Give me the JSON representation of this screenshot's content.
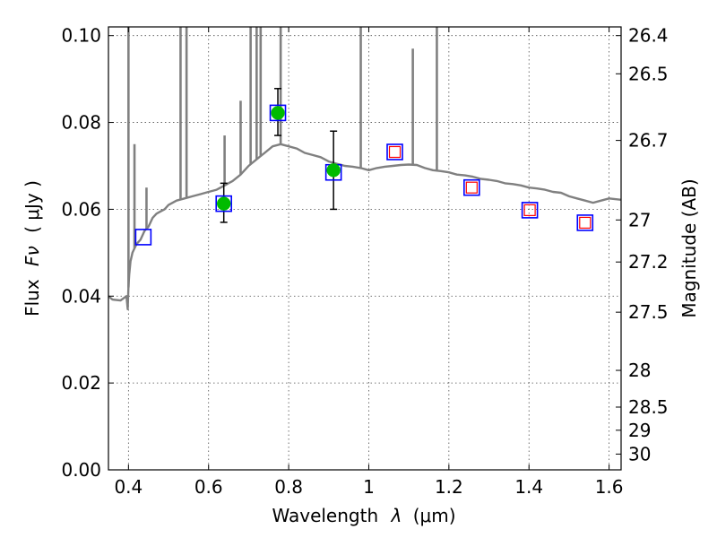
{
  "chart_data": {
    "type": "scatter",
    "title": "",
    "xlabel_prefix": "Wavelength",
    "xlabel_symbol": "λ",
    "xlabel_unit": "(μm)",
    "ylabel_prefix": "Flux",
    "ylabel_symbol": "Fν",
    "ylabel_unit": "( μJy )",
    "y2label": "Magnitude (AB)",
    "xlim": [
      0.35,
      1.63
    ],
    "ylim": [
      0.0,
      0.102
    ],
    "grid": true,
    "x_ticks": [
      0.4,
      0.6,
      0.8,
      1.0,
      1.2,
      1.4,
      1.6
    ],
    "x_tick_labels": [
      "0.4",
      "0.6",
      "0.8",
      "1",
      "1.2",
      "1.4",
      "1.6"
    ],
    "y_ticks": [
      0.0,
      0.02,
      0.04,
      0.06,
      0.08,
      0.1
    ],
    "y_tick_labels": [
      "0.00",
      "0.02",
      "0.04",
      "0.06",
      "0.08",
      "0.10"
    ],
    "y2_ticks": [
      {
        "label": "26.4",
        "value": 26.4
      },
      {
        "label": "26.5",
        "value": 26.5
      },
      {
        "label": "26.7",
        "value": 26.7
      },
      {
        "label": "27",
        "value": 27.0
      },
      {
        "label": "27.2",
        "value": 27.2
      },
      {
        "label": "27.5",
        "value": 27.5
      },
      {
        "label": "28",
        "value": 28.0
      },
      {
        "label": "28.5",
        "value": 28.5
      },
      {
        "label": "29",
        "value": 29.0
      },
      {
        "label": "30",
        "value": 30.0
      }
    ],
    "colors": {
      "model": "#808080",
      "observed": "#00bb00",
      "model_box": "#0000ff",
      "predicted_box": "#ff0000",
      "errorbar": "#000000"
    },
    "series": [
      {
        "type": "line",
        "x": [
          0.35,
          0.36,
          0.38,
          0.395,
          0.398,
          0.4,
          0.402,
          0.405,
          0.41,
          0.42,
          0.43,
          0.44,
          0.45,
          0.46,
          0.47,
          0.48,
          0.49,
          0.5,
          0.52,
          0.54,
          0.56,
          0.58,
          0.6,
          0.62,
          0.64,
          0.66,
          0.68,
          0.7,
          0.72,
          0.74,
          0.76,
          0.78,
          0.8,
          0.82,
          0.84,
          0.86,
          0.88,
          0.9,
          0.92,
          0.94,
          0.96,
          0.98,
          1.0,
          1.02,
          1.04,
          1.06,
          1.08,
          1.1,
          1.12,
          1.14,
          1.16,
          1.18,
          1.2,
          1.22,
          1.24,
          1.26,
          1.28,
          1.3,
          1.32,
          1.34,
          1.36,
          1.38,
          1.4,
          1.42,
          1.44,
          1.46,
          1.48,
          1.5,
          1.52,
          1.54,
          1.56,
          1.58,
          1.6,
          1.63
        ],
        "y": [
          0.04,
          0.0392,
          0.039,
          0.04,
          0.037,
          0.042,
          0.045,
          0.048,
          0.05,
          0.052,
          0.053,
          0.055,
          0.056,
          0.058,
          0.059,
          0.0595,
          0.06,
          0.061,
          0.062,
          0.0625,
          0.063,
          0.0635,
          0.064,
          0.0645,
          0.0655,
          0.0665,
          0.068,
          0.07,
          0.0715,
          0.073,
          0.0745,
          0.075,
          0.0745,
          0.074,
          0.073,
          0.0725,
          0.072,
          0.071,
          0.0705,
          0.07,
          0.0698,
          0.0695,
          0.069,
          0.0695,
          0.0698,
          0.07,
          0.0702,
          0.0703,
          0.0702,
          0.0695,
          0.069,
          0.0688,
          0.0685,
          0.068,
          0.0678,
          0.0675,
          0.067,
          0.0668,
          0.0665,
          0.066,
          0.0658,
          0.0655,
          0.065,
          0.0648,
          0.0645,
          0.064,
          0.0638,
          0.063,
          0.0625,
          0.062,
          0.0615,
          0.062,
          0.0625,
          0.0622
        ]
      },
      {
        "type": "lines",
        "x": [
          0.4,
          0.415,
          0.445,
          0.53,
          0.545,
          0.64,
          0.68,
          0.705,
          0.72,
          0.73,
          0.78,
          0.98,
          1.11,
          1.17
        ],
        "y": [
          0.102,
          0.075,
          0.065,
          0.102,
          0.102,
          0.077,
          0.085,
          0.102,
          0.102,
          0.102,
          0.102,
          0.102,
          0.097,
          0.102
        ]
      },
      {
        "type": "observed",
        "x": [
          0.638,
          0.773,
          0.912
        ],
        "y": [
          0.0613,
          0.0822,
          0.069
        ],
        "err_low": [
          0.057,
          0.077,
          0.06
        ],
        "err_high": [
          0.066,
          0.0878,
          0.078
        ]
      },
      {
        "type": "model_boxes",
        "x": [
          0.437,
          0.638,
          0.773,
          0.912,
          1.065,
          1.257,
          1.402,
          1.54
        ],
        "y": [
          0.0536,
          0.0613,
          0.0822,
          0.0685,
          0.0732,
          0.065,
          0.0598,
          0.0569
        ]
      },
      {
        "type": "predicted_boxes",
        "x": [
          1.065,
          1.257,
          1.402,
          1.54
        ],
        "y": [
          0.0732,
          0.065,
          0.0598,
          0.0569
        ]
      }
    ]
  }
}
